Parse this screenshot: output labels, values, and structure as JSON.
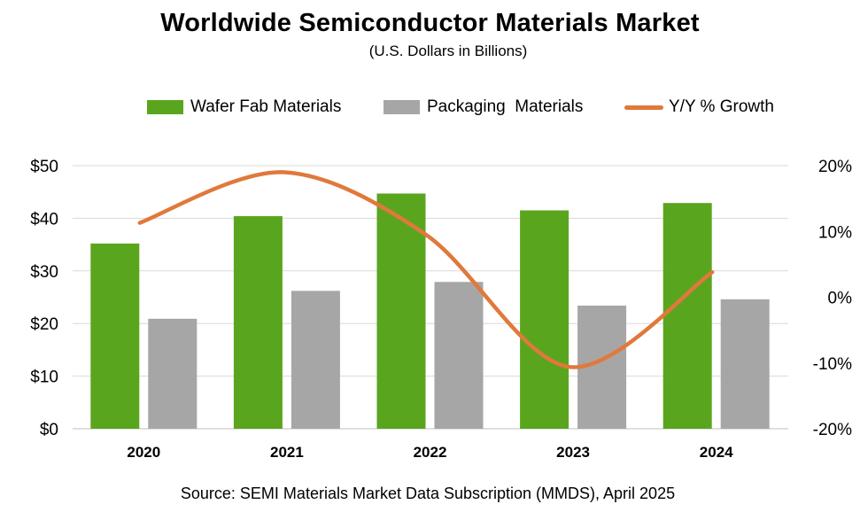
{
  "chart_data": {
    "type": "bar",
    "title": "Worldwide Semiconductor Materials Market",
    "subtitle": "(U.S. Dollars in Billions)",
    "categories": [
      "2020",
      "2021",
      "2022",
      "2023",
      "2024"
    ],
    "series": [
      {
        "name": "Wafer Fab Materials",
        "type": "bar",
        "axis": "left",
        "color": "#5aa51e",
        "values": [
          35.2,
          40.4,
          44.7,
          41.5,
          42.9
        ]
      },
      {
        "name": "Packaging  Materials",
        "type": "bar",
        "axis": "left",
        "color": "#a6a6a6",
        "values": [
          20.9,
          26.2,
          27.9,
          23.4,
          24.6
        ]
      },
      {
        "name": "Y/Y % Growth",
        "type": "line",
        "axis": "right",
        "color": "#e0793b",
        "values": [
          11.3,
          19.0,
          9.5,
          -10.6,
          3.8
        ]
      }
    ],
    "ylim_left": [
      0,
      50
    ],
    "yticks_left": [
      "$0",
      "$10",
      "$20",
      "$30",
      "$40",
      "$50"
    ],
    "ylim_right": [
      -20,
      20
    ],
    "yticks_right": [
      "-20%",
      "-10%",
      "0%",
      "10%",
      "20%"
    ],
    "grid": true,
    "legend_position": "top-center",
    "line_smoothed": true
  },
  "footer": {
    "source": "Source:  SEMI Materials Market Data Subscription (MMDS), April 2025"
  }
}
